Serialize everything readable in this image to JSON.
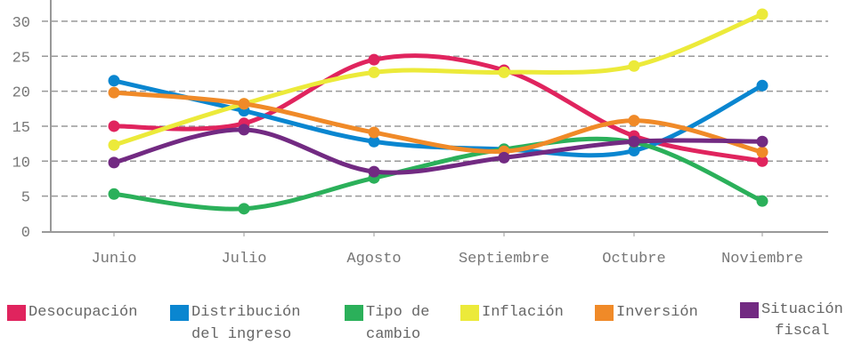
{
  "chart_data": {
    "type": "line",
    "title": "",
    "xlabel": "",
    "ylabel": "",
    "categories": [
      "Junio",
      "Julio",
      "Agosto",
      "Septiembre",
      "Octubre",
      "Noviembre"
    ],
    "yticks": [
      "0",
      "5",
      "10",
      "15",
      "20",
      "25",
      "30"
    ],
    "ylim": [
      0,
      32
    ],
    "grid": true,
    "legend_placement": "bottom",
    "series": [
      {
        "name": "Desocupación",
        "legend_lines": [
          "Desocupación"
        ],
        "color": "#e0245e",
        "values": [
          15.0,
          15.4,
          24.5,
          23.0,
          13.6,
          10.0
        ]
      },
      {
        "name": "Distribución del ingreso",
        "legend_lines": [
          "Distribución",
          "del ingreso"
        ],
        "color": "#0a86d0",
        "values": [
          21.5,
          17.2,
          12.8,
          11.7,
          11.5,
          20.8
        ]
      },
      {
        "name": "Tipo de cambio",
        "legend_lines": [
          "Tipo de",
          "cambio"
        ],
        "color": "#2bb05a",
        "values": [
          5.3,
          3.2,
          7.6,
          11.7,
          12.7,
          4.3
        ]
      },
      {
        "name": "Inflación",
        "legend_lines": [
          "Inflación"
        ],
        "color": "#ecea3a",
        "values": [
          12.3,
          18.2,
          22.7,
          22.7,
          23.6,
          31.0
        ]
      },
      {
        "name": "Inversión",
        "legend_lines": [
          "Inversión"
        ],
        "color": "#f08a28",
        "values": [
          19.8,
          18.2,
          14.1,
          11.4,
          15.8,
          11.3
        ]
      },
      {
        "name": "Situación fiscal",
        "legend_lines": [
          "Situación",
          "fiscal"
        ],
        "color": "#722a82",
        "values": [
          9.8,
          14.5,
          8.5,
          10.5,
          12.8,
          12.8
        ]
      }
    ]
  }
}
